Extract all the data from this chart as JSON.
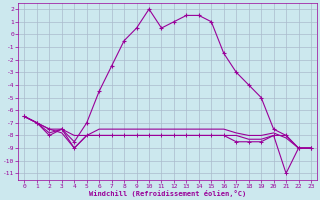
{
  "xlabel": "Windchill (Refroidissement éolien,°C)",
  "background_color": "#cce8ee",
  "grid_color": "#aabbcc",
  "line_color": "#990099",
  "xlim": [
    -0.5,
    23.5
  ],
  "ylim": [
    -11.5,
    2.5
  ],
  "xticks": [
    0,
    1,
    2,
    3,
    4,
    5,
    6,
    7,
    8,
    9,
    10,
    11,
    12,
    13,
    14,
    15,
    16,
    17,
    18,
    19,
    20,
    21,
    22,
    23
  ],
  "yticks": [
    2,
    1,
    0,
    -1,
    -2,
    -3,
    -4,
    -5,
    -6,
    -7,
    -8,
    -9,
    -10,
    -11
  ],
  "line1_x": [
    0,
    1,
    2,
    3,
    4,
    5,
    6,
    7,
    8,
    9,
    10,
    11,
    12,
    13,
    14,
    15,
    16,
    17,
    18,
    19,
    20,
    21,
    22,
    23
  ],
  "line1_y": [
    -6.5,
    -7.0,
    -7.5,
    -7.5,
    -8.5,
    -7.0,
    -4.5,
    -2.5,
    -0.5,
    0.5,
    2.0,
    0.5,
    1.0,
    1.5,
    1.5,
    1.0,
    -1.5,
    -3.0,
    -4.0,
    -5.0,
    -7.5,
    -8.0,
    -9.0,
    -9.0
  ],
  "line2_x": [
    0,
    1,
    2,
    3,
    4,
    5,
    6,
    7,
    8,
    9,
    10,
    11,
    12,
    13,
    14,
    15,
    16,
    17,
    18,
    19,
    20,
    21,
    22,
    23
  ],
  "line2_y": [
    -6.5,
    -7.0,
    -7.5,
    -7.8,
    -9.0,
    -8.0,
    -7.5,
    -7.5,
    -7.5,
    -7.5,
    -7.5,
    -7.5,
    -7.5,
    -7.5,
    -7.5,
    -7.5,
    -7.5,
    -7.8,
    -8.0,
    -8.0,
    -7.8,
    -8.2,
    -9.0,
    -9.0
  ],
  "line3_x": [
    0,
    1,
    2,
    3,
    4,
    5,
    6,
    7,
    8,
    9,
    10,
    11,
    12,
    13,
    14,
    15,
    16,
    17,
    18,
    19,
    20,
    21,
    22,
    23
  ],
  "line3_y": [
    -6.5,
    -7.0,
    -7.8,
    -7.5,
    -8.0,
    -8.0,
    -8.0,
    -8.0,
    -8.0,
    -8.0,
    -8.0,
    -8.0,
    -8.0,
    -8.0,
    -8.0,
    -8.0,
    -8.0,
    -8.0,
    -8.3,
    -8.3,
    -8.0,
    -8.0,
    -9.0,
    -9.0
  ],
  "line4_x": [
    0,
    1,
    2,
    3,
    4,
    5,
    6,
    7,
    8,
    9,
    10,
    11,
    12,
    13,
    14,
    15,
    16,
    17,
    18,
    19,
    20,
    21,
    22,
    23
  ],
  "line4_y": [
    -6.5,
    -7.0,
    -8.0,
    -7.5,
    -9.0,
    -8.0,
    -8.0,
    -8.0,
    -8.0,
    -8.0,
    -8.0,
    -8.0,
    -8.0,
    -8.0,
    -8.0,
    -8.0,
    -8.0,
    -8.5,
    -8.5,
    -8.5,
    -8.0,
    -11.0,
    -9.0,
    -9.0
  ]
}
